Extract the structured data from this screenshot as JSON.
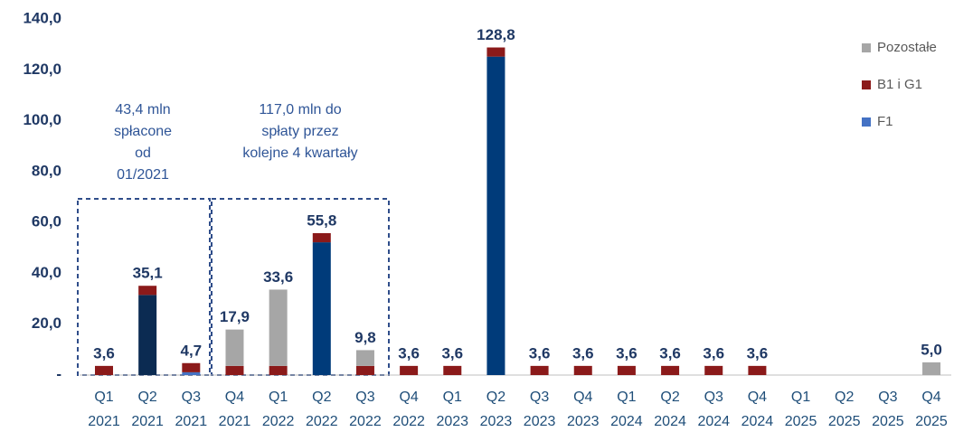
{
  "chart_data": {
    "type": "bar",
    "stacked": true,
    "categories": [
      "Q1 2021",
      "Q2 2021",
      "Q3 2021",
      "Q4 2021",
      "Q1 2022",
      "Q2 2022",
      "Q3 2022",
      "Q4 2022",
      "Q1 2023",
      "Q2 2023",
      "Q3 2023",
      "Q4 2023",
      "Q1 2024",
      "Q2 2024",
      "Q3 2024",
      "Q4 2024",
      "Q1 2025",
      "Q2 2025",
      "Q3 2025",
      "Q4 2025"
    ],
    "series": [
      {
        "colors": [
          null,
          "#0b2b52",
          null,
          null,
          null,
          "#003b7a",
          null,
          null,
          null,
          "#003b7a",
          null,
          null,
          null,
          null,
          null,
          null,
          null,
          null,
          null,
          null
        ],
        "values": [
          null,
          31.5,
          null,
          null,
          null,
          52.2,
          null,
          null,
          null,
          125.2,
          null,
          null,
          null,
          null,
          null,
          null,
          null,
          null,
          null,
          null
        ]
      },
      {
        "name": "F1",
        "color": "#4472c4",
        "values": [
          null,
          null,
          1.1,
          null,
          null,
          null,
          null,
          null,
          null,
          null,
          null,
          null,
          null,
          null,
          null,
          null,
          null,
          null,
          null,
          null
        ]
      },
      {
        "name": "B1 i G1",
        "color": "#8b1a1a",
        "values": [
          3.6,
          3.6,
          3.6,
          3.6,
          3.6,
          3.6,
          3.6,
          3.6,
          3.6,
          3.6,
          3.6,
          3.6,
          3.6,
          3.6,
          3.6,
          3.6,
          null,
          null,
          null,
          null
        ]
      },
      {
        "name": "Pozostałe",
        "color": "#a6a6a6",
        "values": [
          null,
          null,
          null,
          14.3,
          30.0,
          null,
          6.2,
          null,
          null,
          null,
          null,
          null,
          null,
          null,
          null,
          null,
          null,
          null,
          null,
          5.0
        ]
      }
    ],
    "totals": {
      "values": [
        3.6,
        35.1,
        4.7,
        17.9,
        33.6,
        55.8,
        9.8,
        3.6,
        3.6,
        128.8,
        3.6,
        3.6,
        3.6,
        3.6,
        3.6,
        3.6,
        null,
        null,
        null,
        5.0
      ],
      "value_labels": [
        "3,6",
        "35,1",
        "4,7",
        "17,9",
        "33,6",
        "55,8",
        "9,8",
        "3,6",
        "3,6",
        "128,8",
        "3,6",
        "3,6",
        "3,6",
        "3,6",
        "3,6",
        "3,6",
        null,
        null,
        null,
        "5,0"
      ]
    },
    "ylim": [
      0,
      140
    ],
    "yticks": [
      {
        "value": 0,
        "label": "-"
      },
      {
        "value": 20,
        "label": "20,0"
      },
      {
        "value": 40,
        "label": "40,0"
      },
      {
        "value": 60,
        "label": "60,0"
      },
      {
        "value": 80,
        "label": "80,0"
      },
      {
        "value": 100,
        "label": "100,0"
      },
      {
        "value": 120,
        "label": "120,0"
      },
      {
        "value": 140,
        "label": "140,0"
      }
    ],
    "annotations": [
      {
        "lines": [
          "43,4 mln",
          "spłacone",
          "od",
          "01/2021"
        ]
      },
      {
        "lines": [
          "117,0 mln do",
          "spłaty przez",
          "kolejne 4 kwartały"
        ]
      }
    ]
  }
}
